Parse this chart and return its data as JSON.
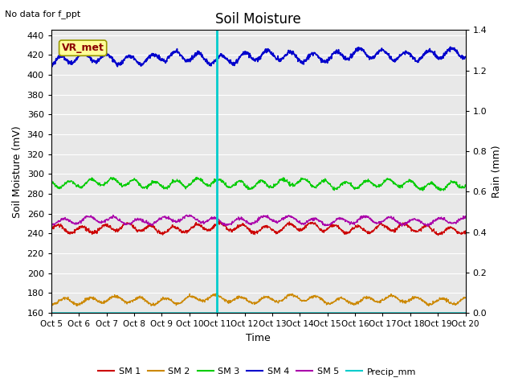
{
  "title": "Soil Moisture",
  "note": "No data for f_ppt",
  "ylabel_left": "Soil Moisture (mV)",
  "ylabel_right": "Rain (mm)",
  "xlabel": "Time",
  "vr_met_label": "VR_met",
  "x_tick_labels": [
    "Oct 5",
    "Oct 6",
    "Oct 7",
    "Oct 8",
    "Oct 9",
    "Oct 10",
    "Oct 11",
    "Oct 12",
    "Oct 13",
    "Oct 14",
    "Oct 15",
    "Oct 16",
    "Oct 17",
    "Oct 18",
    "Oct 19",
    "Oct 20"
  ],
  "ylim_left": [
    160,
    445
  ],
  "ylim_right": [
    0.0,
    1.4
  ],
  "yticks_left": [
    160,
    180,
    200,
    220,
    240,
    260,
    280,
    300,
    320,
    340,
    360,
    380,
    400,
    420,
    440
  ],
  "yticks_right": [
    0.0,
    0.2,
    0.4,
    0.6,
    0.8,
    1.0,
    1.2,
    1.4
  ],
  "sm1_color": "#cc0000",
  "sm2_color": "#cc8800",
  "sm3_color": "#00cc00",
  "sm4_color": "#0000cc",
  "sm5_color": "#aa00aa",
  "precip_color": "#00cccc",
  "vline_day": 6,
  "background_color": "#e8e8e8",
  "legend_labels": [
    "SM 1",
    "SM 2",
    "SM 3",
    "SM 4",
    "SM 5",
    "Precip_mm"
  ],
  "sm1_mean": 245,
  "sm2_mean": 173,
  "sm3_mean": 290,
  "sm4_mean": 418,
  "sm5_mean": 253
}
